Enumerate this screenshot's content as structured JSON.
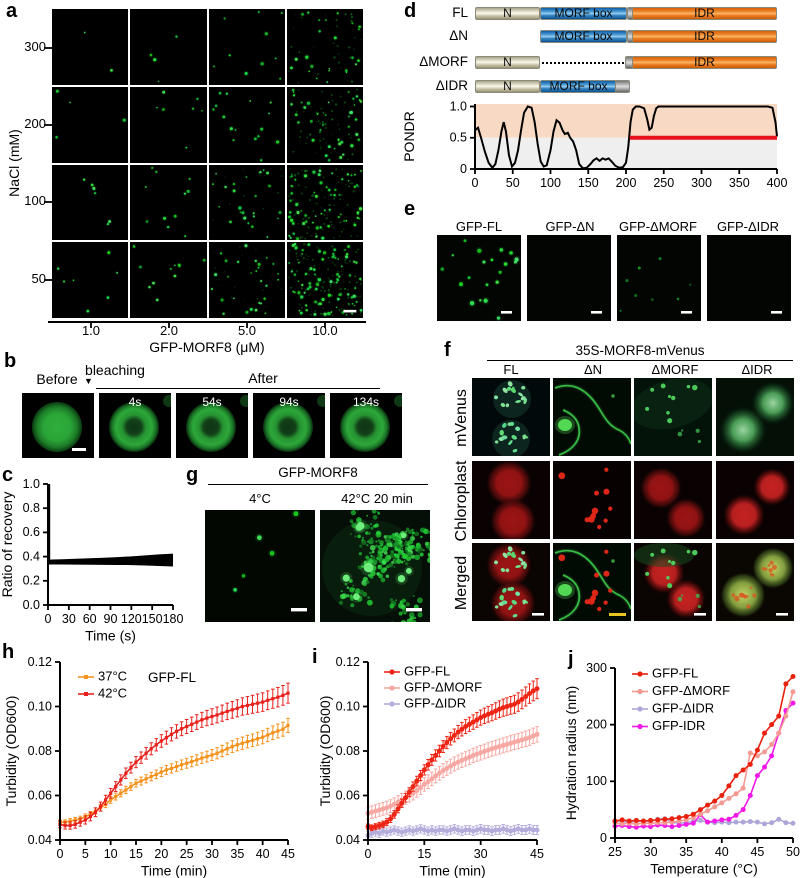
{
  "panel_labels": {
    "a": "a",
    "b": "b",
    "c": "c",
    "d": "d",
    "e": "e",
    "f": "f",
    "g": "g",
    "h": "h",
    "i": "i",
    "j": "j"
  },
  "panel_a": {
    "y_axis_label": "NaCl (mM)",
    "y_ticks": [
      "300",
      "200",
      "100",
      "50"
    ],
    "x_ticks": [
      "1.0",
      "2.0",
      "5.0",
      "10.0"
    ],
    "x_axis_label": "GFP-MORF8 (μM)",
    "dot_counts": [
      [
        2,
        4,
        10,
        24
      ],
      [
        4,
        7,
        16,
        40
      ],
      [
        6,
        11,
        24,
        62
      ],
      [
        7,
        11,
        28,
        85
      ]
    ]
  },
  "panel_b": {
    "before_label": "Before",
    "bleaching_label": "bleaching",
    "after_label": "After",
    "time_labels": [
      "4s",
      "54s",
      "94s",
      "134s"
    ]
  },
  "panel_d": {
    "construct_names": [
      "FL",
      "ΔN",
      "ΔMORF",
      "ΔIDR"
    ],
    "segment_labels": {
      "n": "N",
      "morf": "MORF box",
      "idr": "IDR"
    },
    "colors": {
      "n": "#ded8c2",
      "morf": "#2878c0",
      "idr": "#f47920",
      "disorder_shade": "#f7d9c4",
      "order_shade": "#efefef",
      "threshold_line": "#e8101c"
    }
  },
  "panel_e": {
    "titles": [
      "GFP-FL",
      "GFP-ΔN",
      "GFP-ΔMORF",
      "GFP-ΔIDR"
    ],
    "dot_counts": [
      20,
      0,
      8,
      0
    ]
  },
  "panel_f": {
    "title": "35S-MORF8-mVenus",
    "columns": [
      "FL",
      "ΔN",
      "ΔMORF",
      "ΔIDR"
    ],
    "rows": [
      "mVenus",
      "Chloroplast",
      "Merged"
    ]
  },
  "panel_g": {
    "title": "GFP-MORF8",
    "conditions": [
      "4°C",
      "42°C 20 min"
    ]
  },
  "chart_data": [
    {
      "id": "c",
      "type": "area",
      "xlabel": "Time (s)",
      "ylabel": "Ratio of recovery",
      "xlim": [
        0,
        180
      ],
      "ylim": [
        0,
        1
      ],
      "xticks": [
        0,
        30,
        60,
        90,
        120,
        150,
        180
      ],
      "yticks": [
        0,
        0.2,
        0.4,
        0.6,
        0.8,
        1
      ],
      "ytick_labels": [
        "0.0",
        "0.2",
        "0.4",
        "0.6",
        "0.8",
        "1.0"
      ],
      "band": {
        "x": [
          0,
          20,
          40,
          60,
          80,
          100,
          120,
          140,
          160,
          180
        ],
        "hi": [
          0.375,
          0.378,
          0.382,
          0.386,
          0.39,
          0.396,
          0.402,
          0.41,
          0.418,
          0.425
        ],
        "lo": [
          0.335,
          0.335,
          0.334,
          0.333,
          0.332,
          0.331,
          0.33,
          0.326,
          0.322,
          0.318
        ]
      },
      "vline": {
        "x": 2,
        "y0": 0.37,
        "y1": 1.0
      },
      "color": "#000000"
    },
    {
      "id": "pondr",
      "type": "line",
      "ylabel": "PONDR",
      "xlim": [
        0,
        400
      ],
      "ylim": [
        0,
        1.04
      ],
      "xticks": [
        0,
        50,
        100,
        150,
        200,
        250,
        300,
        350,
        400
      ],
      "yticks": [
        0,
        0.5,
        1
      ],
      "ytick_labels": [
        "0",
        "0.5",
        "1.0"
      ],
      "shading": [
        {
          "y0": 0.5,
          "y1": 1.04,
          "color": "#f7d9c4"
        },
        {
          "y0": 0,
          "y1": 0.5,
          "color": "#efefef"
        }
      ],
      "curve_x": [
        0,
        4,
        8,
        13,
        18,
        23,
        27,
        31,
        35,
        38,
        41,
        45,
        49,
        53,
        57,
        61,
        65,
        70,
        75,
        79,
        83,
        87,
        91,
        95,
        100,
        104,
        108,
        112,
        116,
        119,
        123,
        126,
        130,
        134,
        138,
        143,
        148,
        153,
        157,
        161,
        165,
        169,
        173,
        177,
        181,
        186,
        191,
        196,
        200,
        203,
        206,
        209,
        213,
        218,
        224,
        228,
        231,
        234,
        237,
        240,
        243,
        246,
        250,
        260,
        280,
        310,
        340,
        370,
        388,
        394,
        398,
        400
      ],
      "curve_y": [
        0.62,
        0.66,
        0.5,
        0.28,
        0.1,
        0.02,
        0.08,
        0.3,
        0.6,
        0.75,
        0.6,
        0.22,
        0.04,
        0.1,
        0.3,
        0.62,
        0.9,
        1,
        0.98,
        0.75,
        0.4,
        0.12,
        0.04,
        0.06,
        0.3,
        0.6,
        0.78,
        0.74,
        0.62,
        0.56,
        0.58,
        0.5,
        0.44,
        0.3,
        0.08,
        0.01,
        0.02,
        0.08,
        0.14,
        0.17,
        0.13,
        0.17,
        0.15,
        0.17,
        0.12,
        0.05,
        0.02,
        0.03,
        0.1,
        0.35,
        0.75,
        0.95,
        1,
        1,
        0.97,
        0.8,
        0.63,
        0.66,
        0.85,
        0.97,
        1,
        1,
        1,
        1,
        1,
        1,
        1,
        1,
        1,
        0.98,
        0.75,
        0.52
      ],
      "threshold": {
        "y": 0.5,
        "x0": 205,
        "x1": 400,
        "color": "#e8101c"
      }
    },
    {
      "id": "h",
      "type": "line",
      "annotation": "GFP-FL",
      "xlabel": "Time (min)",
      "ylabel": "Turbidity (OD600)",
      "xlim": [
        0,
        45
      ],
      "ylim": [
        0.04,
        0.12
      ],
      "xticks": [
        0,
        5,
        10,
        15,
        20,
        25,
        30,
        35,
        40,
        45
      ],
      "yticks": [
        0.04,
        0.06,
        0.08,
        0.1,
        0.12
      ],
      "ytick_labels": [
        "0.04",
        "0.06",
        "0.08",
        "0.10",
        "0.12"
      ],
      "x_step": 1,
      "series": [
        {
          "name": "37°C",
          "color": "#f6921e",
          "marker": "sq",
          "err0": 0.001,
          "err1": 0.0032,
          "values": [
            0.048,
            0.048,
            0.0485,
            0.049,
            0.0495,
            0.0505,
            0.0515,
            0.053,
            0.0545,
            0.056,
            0.058,
            0.0595,
            0.061,
            0.0625,
            0.064,
            0.0655,
            0.0665,
            0.0675,
            0.0685,
            0.0695,
            0.0705,
            0.0715,
            0.0722,
            0.073,
            0.0738,
            0.0745,
            0.0752,
            0.076,
            0.0768,
            0.0775,
            0.0782,
            0.079,
            0.08,
            0.081,
            0.082,
            0.0828,
            0.0835,
            0.0842,
            0.0848,
            0.0855,
            0.0862,
            0.0872,
            0.0882,
            0.089,
            0.0898,
            0.0915
          ]
        },
        {
          "name": "42°C",
          "color": "#e8211c",
          "marker": "sq",
          "err0": 0.0015,
          "err1": 0.0045,
          "values": [
            0.047,
            0.0465,
            0.0465,
            0.047,
            0.048,
            0.049,
            0.0505,
            0.0525,
            0.055,
            0.058,
            0.061,
            0.064,
            0.067,
            0.07,
            0.0725,
            0.075,
            0.077,
            0.079,
            0.081,
            0.0828,
            0.0845,
            0.086,
            0.0875,
            0.0888,
            0.09,
            0.091,
            0.092,
            0.093,
            0.094,
            0.0948,
            0.0955,
            0.0962,
            0.097,
            0.0978,
            0.0985,
            0.0992,
            0.1,
            0.1005,
            0.101,
            0.1015,
            0.102,
            0.1028,
            0.1035,
            0.1042,
            0.105,
            0.106
          ]
        }
      ],
      "legend": [
        {
          "label": "37°C",
          "color": "#f6921e",
          "marker": "sq"
        },
        {
          "label": "42°C",
          "color": "#e8211c",
          "marker": "sq"
        }
      ]
    },
    {
      "id": "i",
      "type": "line",
      "xlabel": "Time (min)",
      "ylabel": "Turbidity (OD600)",
      "xlim": [
        0,
        45
      ],
      "ylim": [
        0.04,
        0.12
      ],
      "xticks": [
        0,
        15,
        30,
        45
      ],
      "yticks": [
        0.04,
        0.06,
        0.08,
        0.1,
        0.12
      ],
      "ytick_labels": [
        "0.04",
        "0.06",
        "0.08",
        "0.10",
        "0.12"
      ],
      "x_step": 1,
      "series": [
        {
          "name": "GFP-ΔIDR",
          "color": "#b5acdb",
          "marker": "ci",
          "err0": 0.0018,
          "err1": 0.002,
          "values": [
            0.042,
            0.043,
            0.0435,
            0.043,
            0.044,
            0.0435,
            0.044,
            0.0445,
            0.044,
            0.0435,
            0.044,
            0.0445,
            0.044,
            0.0445,
            0.045,
            0.0445,
            0.044,
            0.0445,
            0.044,
            0.0445,
            0.0445,
            0.044,
            0.0445,
            0.045,
            0.0445,
            0.044,
            0.0445,
            0.0445,
            0.044,
            0.0445,
            0.045,
            0.0445,
            0.0445,
            0.044,
            0.0445,
            0.0445,
            0.045,
            0.0445,
            0.044,
            0.0445,
            0.045,
            0.0445,
            0.0445,
            0.045,
            0.0445,
            0.0445
          ]
        },
        {
          "name": "GFP-ΔMORF",
          "color": "#f8a8a2",
          "marker": "ci",
          "err0": 0.0028,
          "err1": 0.0035,
          "values": [
            0.052,
            0.0525,
            0.053,
            0.0535,
            0.054,
            0.0545,
            0.0552,
            0.056,
            0.057,
            0.058,
            0.059,
            0.06,
            0.061,
            0.0622,
            0.0635,
            0.065,
            0.0662,
            0.0675,
            0.0688,
            0.07,
            0.0712,
            0.0722,
            0.0732,
            0.0742,
            0.075,
            0.0758,
            0.0765,
            0.0772,
            0.078,
            0.0786,
            0.0792,
            0.0798,
            0.0804,
            0.081,
            0.0815,
            0.082,
            0.0825,
            0.083,
            0.0835,
            0.084,
            0.0845,
            0.085,
            0.0855,
            0.086,
            0.0868,
            0.0875
          ]
        },
        {
          "name": "GFP-FL",
          "color": "#ee2414",
          "marker": "ci",
          "err0": 0.0012,
          "err1": 0.0045,
          "values": [
            0.046,
            0.0455,
            0.046,
            0.0465,
            0.047,
            0.048,
            0.0495,
            0.0515,
            0.054,
            0.0565,
            0.059,
            0.0615,
            0.064,
            0.0665,
            0.069,
            0.0715,
            0.0738,
            0.076,
            0.078,
            0.08,
            0.082,
            0.0838,
            0.0855,
            0.087,
            0.0885,
            0.0898,
            0.091,
            0.092,
            0.093,
            0.094,
            0.095,
            0.0958,
            0.0965,
            0.0972,
            0.098,
            0.0988,
            0.0995,
            0.1,
            0.1005,
            0.101,
            0.102,
            0.1032,
            0.1045,
            0.1058,
            0.107,
            0.108
          ]
        }
      ],
      "legend": [
        {
          "label": "GFP-FL",
          "color": "#ee2414",
          "marker": "ci"
        },
        {
          "label": "GFP-ΔMORF",
          "color": "#f8a8a2",
          "marker": "ci"
        },
        {
          "label": "GFP-ΔIDR",
          "color": "#b5acdb",
          "marker": "ci"
        }
      ]
    },
    {
      "id": "j",
      "type": "line",
      "xlabel": "Temperature (°C)",
      "ylabel": "Hydration radius (nm)",
      "xlim": [
        25,
        50
      ],
      "ylim": [
        0,
        300
      ],
      "xticks": [
        25,
        30,
        35,
        40,
        45,
        50
      ],
      "yticks": [
        0,
        100,
        200,
        300
      ],
      "ytick_labels": [
        "0",
        "100",
        "200",
        "300"
      ],
      "series": [
        {
          "name": "GFP-ΔIDR",
          "color": "#aea6d8",
          "marker": "ci",
          "x": [
            25,
            26,
            27,
            28,
            29,
            30,
            31,
            32,
            33,
            34,
            35,
            36,
            37,
            38,
            39,
            40,
            41,
            42,
            43,
            44,
            45,
            46,
            47,
            48,
            49,
            50
          ],
          "values": [
            30,
            29,
            28,
            29,
            30,
            29,
            33,
            34,
            28,
            26,
            27,
            29,
            31,
            28,
            27,
            28,
            27,
            28,
            28,
            29,
            28,
            25,
            27,
            33,
            27,
            26
          ]
        },
        {
          "name": "GFP-IDR",
          "color": "#f218e8",
          "marker": "ci",
          "x": [
            25,
            26,
            27,
            28,
            29,
            30,
            31,
            32,
            33,
            34,
            35,
            36,
            37,
            38,
            39,
            40,
            41,
            42,
            43,
            44,
            45,
            46,
            47,
            48,
            49,
            50
          ],
          "values": [
            21,
            22,
            20,
            19,
            21,
            20,
            23,
            22,
            20,
            22,
            24,
            26,
            41,
            28,
            30,
            32,
            33,
            40,
            50,
            75,
            110,
            125,
            145,
            185,
            225,
            238
          ]
        },
        {
          "name": "GFP-ΔMORF",
          "color": "#f49a92",
          "marker": "ci",
          "x": [
            25,
            26,
            27,
            28,
            29,
            30,
            31,
            32,
            33,
            34,
            35,
            36,
            37,
            38,
            39,
            40,
            41,
            42,
            43,
            44,
            45,
            46,
            47,
            48,
            49,
            50
          ],
          "values": [
            26,
            25,
            26,
            25,
            26,
            26,
            27,
            27,
            28,
            30,
            32,
            36,
            42,
            48,
            55,
            62,
            70,
            78,
            88,
            150,
            145,
            152,
            165,
            185,
            215,
            258
          ]
        },
        {
          "name": "GFP-FL",
          "color": "#e8200c",
          "marker": "ci",
          "x": [
            25,
            26,
            27,
            28,
            29,
            30,
            31,
            32,
            33,
            34,
            35,
            36,
            37,
            38,
            39,
            40,
            41,
            42,
            43,
            44,
            45,
            46,
            47,
            48,
            49,
            50
          ],
          "values": [
            30,
            32,
            30,
            31,
            30,
            31,
            32,
            33,
            34,
            36,
            38,
            42,
            50,
            58,
            65,
            75,
            92,
            110,
            120,
            130,
            155,
            185,
            200,
            215,
            272,
            285
          ]
        }
      ],
      "legend": [
        {
          "label": "GFP-FL",
          "color": "#e8200c",
          "marker": "ci"
        },
        {
          "label": "GFP-ΔMORF",
          "color": "#f49a92",
          "marker": "ci"
        },
        {
          "label": "GFP-ΔIDR",
          "color": "#aea6d8",
          "marker": "ci"
        },
        {
          "label": "GFP-IDR",
          "color": "#f218e8",
          "marker": "ci"
        }
      ]
    }
  ]
}
